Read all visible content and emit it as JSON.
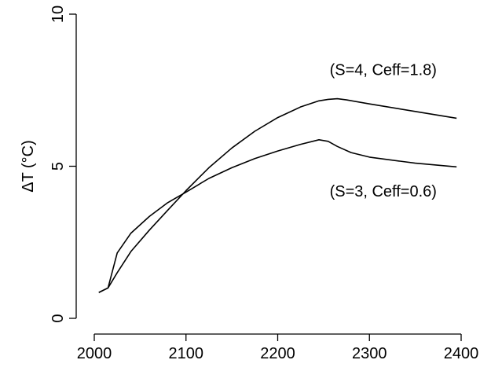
{
  "chart_data": {
    "type": "line",
    "title": "",
    "xlabel": "",
    "ylabel": "ΔT (°C)",
    "xlim": [
      2000,
      2400
    ],
    "ylim": [
      0,
      10
    ],
    "x_ticks": [
      2000,
      2100,
      2200,
      2300,
      2400
    ],
    "y_ticks": [
      0,
      5,
      10
    ],
    "grid": false,
    "legend": "none",
    "series": [
      {
        "color": "#000000",
        "x": [
          2005,
          2015,
          2025,
          2040,
          2060,
          2080,
          2100,
          2125,
          2150,
          2175,
          2200,
          2225,
          2245,
          2255,
          2265,
          2275,
          2300,
          2350,
          2395
        ],
        "y": [
          0.85,
          1.0,
          1.5,
          2.2,
          2.9,
          3.55,
          4.2,
          4.95,
          5.6,
          6.15,
          6.6,
          6.95,
          7.15,
          7.2,
          7.22,
          7.18,
          7.05,
          6.8,
          6.58
        ]
      },
      {
        "color": "#000000",
        "x": [
          2005,
          2015,
          2025,
          2040,
          2060,
          2080,
          2100,
          2125,
          2150,
          2175,
          2200,
          2225,
          2245,
          2255,
          2265,
          2280,
          2300,
          2350,
          2395
        ],
        "y": [
          0.85,
          1.0,
          2.15,
          2.8,
          3.35,
          3.8,
          4.15,
          4.6,
          4.95,
          5.25,
          5.5,
          5.72,
          5.87,
          5.82,
          5.65,
          5.45,
          5.3,
          5.1,
          4.98
        ]
      }
    ],
    "annotations": [
      {
        "text": "(S=4, Ceff=1.8)",
        "x": 2315,
        "y": 8.0
      },
      {
        "text": "(S=3, Ceff=0.6)",
        "x": 2315,
        "y": 4.0
      }
    ]
  }
}
